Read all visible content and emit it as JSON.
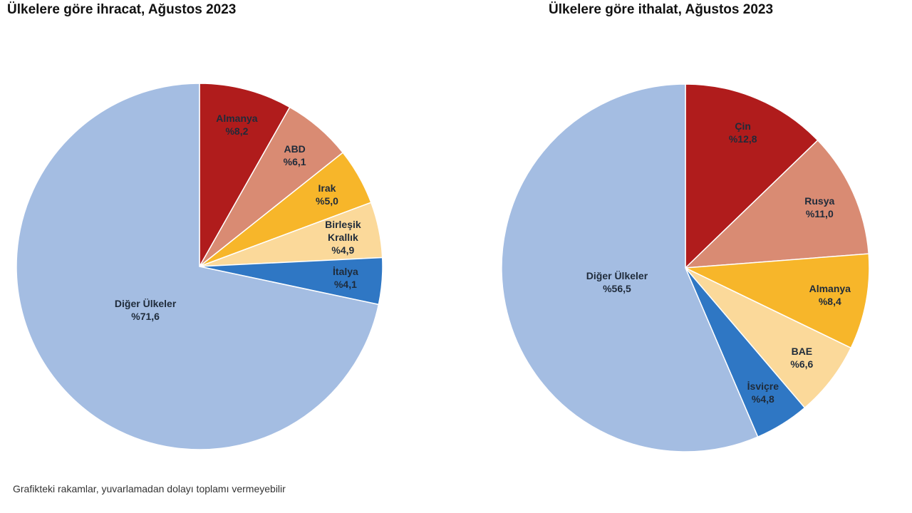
{
  "chart_data": [
    {
      "type": "pie",
      "title": "Ülkelere göre ihracat, Ağustos 2023",
      "categories": [
        "Almanya",
        "ABD",
        "Irak",
        "Birleşik Krallık",
        "İtalya",
        "Diğer Ülkeler"
      ],
      "values": [
        8.2,
        6.1,
        5.0,
        4.9,
        4.1,
        71.6
      ],
      "value_labels": [
        "%8,2",
        "%6,1",
        "%5,0",
        "%4,9",
        "%4,1",
        "%71,6"
      ],
      "colors": [
        "#b01c1c",
        "#d98b73",
        "#f7b62a",
        "#fbd99a",
        "#2f77c4",
        "#a4bde2"
      ]
    },
    {
      "type": "pie",
      "title": "Ülkelere göre ithalat, Ağustos 2023",
      "categories": [
        "Çin",
        "Rusya",
        "Almanya",
        "BAE",
        "İsviçre",
        "Diğer Ülkeler"
      ],
      "values": [
        12.8,
        11.0,
        8.4,
        6.6,
        4.8,
        56.5
      ],
      "value_labels": [
        "%12,8",
        "%11,0",
        "%8,4",
        "%6,6",
        "%4,8",
        "%56,5"
      ],
      "colors": [
        "#b01c1c",
        "#d98b73",
        "#f7b62a",
        "#fbd99a",
        "#2f77c4",
        "#a4bde2"
      ]
    }
  ],
  "footnote": "Grafikteki rakamlar, yuvarlamadan dolayı toplamı vermeyebilir"
}
